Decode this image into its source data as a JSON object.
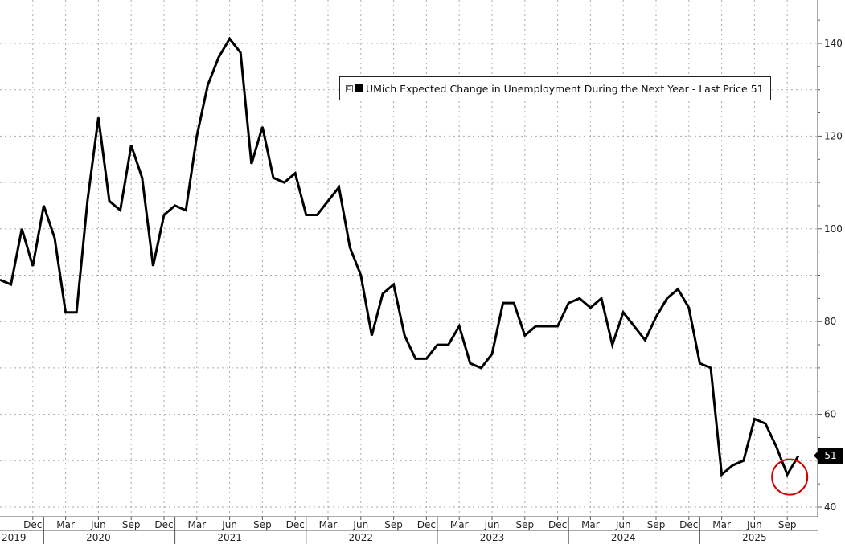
{
  "legend": {
    "toggle": "⊟",
    "label": "UMich Expected Change in Unemployment During the Next Year - Last Price 51"
  },
  "last_price_tag": "51",
  "colors": {
    "series": "#000000",
    "highlight": "#cc0000",
    "grid": "#aaaaaa"
  },
  "chart_data": {
    "type": "line",
    "title": "",
    "xlabel": "",
    "ylabel": "",
    "ylim": [
      40,
      145
    ],
    "xlim": [
      "2019-09",
      "2025-11"
    ],
    "y_ticks": [
      40,
      60,
      80,
      100,
      120,
      140
    ],
    "y_axis_position": "right",
    "grid": true,
    "legend_position": "top-center",
    "x_month_ticks": [
      {
        "date": "2019-12",
        "label": "Dec"
      },
      {
        "date": "2020-03",
        "label": "Mar"
      },
      {
        "date": "2020-06",
        "label": "Jun"
      },
      {
        "date": "2020-09",
        "label": "Sep"
      },
      {
        "date": "2020-12",
        "label": "Dec"
      },
      {
        "date": "2021-03",
        "label": "Mar"
      },
      {
        "date": "2021-06",
        "label": "Jun"
      },
      {
        "date": "2021-09",
        "label": "Sep"
      },
      {
        "date": "2021-12",
        "label": "Dec"
      },
      {
        "date": "2022-03",
        "label": "Mar"
      },
      {
        "date": "2022-06",
        "label": "Jun"
      },
      {
        "date": "2022-09",
        "label": "Sep"
      },
      {
        "date": "2022-12",
        "label": "Dec"
      },
      {
        "date": "2023-03",
        "label": "Mar"
      },
      {
        "date": "2023-06",
        "label": "Jun"
      },
      {
        "date": "2023-09",
        "label": "Sep"
      },
      {
        "date": "2023-12",
        "label": "Dec"
      },
      {
        "date": "2024-03",
        "label": "Mar"
      },
      {
        "date": "2024-06",
        "label": "Jun"
      },
      {
        "date": "2024-09",
        "label": "Sep"
      },
      {
        "date": "2024-12",
        "label": "Dec"
      },
      {
        "date": "2025-03",
        "label": "Mar"
      },
      {
        "date": "2025-06",
        "label": "Jun"
      },
      {
        "date": "2025-09",
        "label": "Sep"
      }
    ],
    "x_year_labels": [
      {
        "date": "2019-09",
        "label": "2019"
      },
      {
        "date": "2020-06",
        "label": "2020"
      },
      {
        "date": "2021-06",
        "label": "2021"
      },
      {
        "date": "2022-06",
        "label": "2022"
      },
      {
        "date": "2023-06",
        "label": "2023"
      },
      {
        "date": "2024-06",
        "label": "2024"
      },
      {
        "date": "2025-06",
        "label": "2025"
      }
    ],
    "year_separators": [
      "2020-01",
      "2021-01",
      "2022-01",
      "2023-01",
      "2024-01",
      "2025-01"
    ],
    "series": [
      {
        "x": [
          "2019-09",
          "2019-10",
          "2019-11",
          "2019-12",
          "2020-01",
          "2020-02",
          "2020-03",
          "2020-04",
          "2020-05",
          "2020-06",
          "2020-07",
          "2020-08",
          "2020-09",
          "2020-10",
          "2020-11",
          "2020-12",
          "2021-01",
          "2021-02",
          "2021-03",
          "2021-04",
          "2021-05",
          "2021-06",
          "2021-07",
          "2021-08",
          "2021-09",
          "2021-10",
          "2021-11",
          "2021-12",
          "2022-01",
          "2022-02",
          "2022-03",
          "2022-04",
          "2022-05",
          "2022-06",
          "2022-07",
          "2022-08",
          "2022-09",
          "2022-10",
          "2022-11",
          "2022-12",
          "2023-01",
          "2023-02",
          "2023-03",
          "2023-04",
          "2023-05",
          "2023-06",
          "2023-07",
          "2023-08",
          "2023-09",
          "2023-10",
          "2023-11",
          "2023-12",
          "2024-01",
          "2024-02",
          "2024-03",
          "2024-04",
          "2024-05",
          "2024-06",
          "2024-07",
          "2024-08",
          "2024-09",
          "2024-10",
          "2024-11",
          "2024-12",
          "2025-01",
          "2025-02",
          "2025-03",
          "2025-04",
          "2025-05",
          "2025-06",
          "2025-07",
          "2025-08",
          "2025-09",
          "2025-10"
        ],
        "values": [
          89,
          88,
          100,
          92,
          105,
          98,
          82,
          82,
          106,
          124,
          106,
          104,
          118,
          111,
          92,
          103,
          105,
          104,
          120,
          131,
          137,
          141,
          138,
          114,
          122,
          111,
          110,
          112,
          103,
          103,
          106,
          109,
          96,
          90,
          77,
          86,
          88,
          77,
          72,
          72,
          75,
          75,
          79,
          71,
          70,
          73,
          84,
          84,
          77,
          79,
          79,
          79,
          84,
          85,
          83,
          85,
          75,
          82,
          79,
          76,
          81,
          85,
          87,
          83,
          71,
          70,
          47,
          49,
          50,
          59,
          58,
          53,
          47,
          51
        ]
      }
    ],
    "highlight": {
      "date": "2025-09",
      "value": 47,
      "shape": "circle"
    },
    "last_value": 51
  }
}
